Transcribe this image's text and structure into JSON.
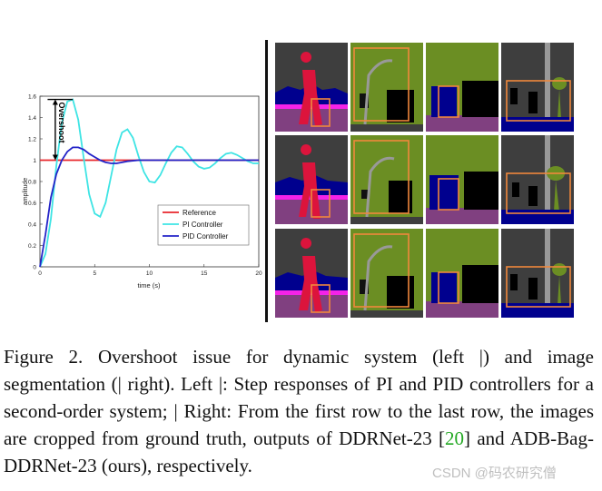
{
  "chart_data": {
    "type": "line",
    "title": "",
    "xlabel": "time (s)",
    "ylabel": "amplitude",
    "xlim": [
      0,
      20
    ],
    "ylim": [
      0,
      1.6
    ],
    "xticks": [
      "0",
      "5",
      "10",
      "15",
      "20"
    ],
    "yticks": [
      "0",
      "0.2",
      "0.4",
      "0.6",
      "0.8",
      "1",
      "1.2",
      "1.4",
      "1.6"
    ],
    "legend_position": "bottom-right",
    "annotation": "Overshoot",
    "series": [
      {
        "name": "Reference",
        "color": "#e8262c",
        "x": [
          0,
          20
        ],
        "y": [
          1,
          1
        ]
      },
      {
        "name": "PI Controller",
        "color": "#3ee4e4",
        "x": [
          0,
          0.5,
          1,
          1.5,
          2,
          2.5,
          3,
          3.5,
          4,
          4.5,
          5,
          5.5,
          6,
          6.5,
          7,
          7.5,
          8,
          8.5,
          9,
          9.5,
          10,
          10.5,
          11,
          11.5,
          12,
          12.5,
          13,
          13.5,
          14,
          14.5,
          15,
          15.5,
          16,
          16.5,
          17,
          17.5,
          18,
          18.5,
          19,
          19.5,
          20
        ],
        "y": [
          0,
          0.12,
          0.45,
          0.95,
          1.35,
          1.55,
          1.57,
          1.38,
          1.02,
          0.68,
          0.5,
          0.47,
          0.6,
          0.85,
          1.1,
          1.26,
          1.29,
          1.21,
          1.04,
          0.89,
          0.8,
          0.79,
          0.86,
          0.97,
          1.07,
          1.13,
          1.12,
          1.06,
          0.99,
          0.94,
          0.92,
          0.93,
          0.97,
          1.02,
          1.06,
          1.07,
          1.05,
          1.02,
          0.99,
          0.97,
          0.97
        ]
      },
      {
        "name": "PID Controller",
        "color": "#2323c8",
        "x": [
          0,
          0.5,
          1,
          1.5,
          2,
          2.5,
          3,
          3.5,
          4,
          4.5,
          5,
          5.5,
          6,
          6.5,
          7,
          7.5,
          8,
          9,
          10,
          12,
          14,
          20
        ],
        "y": [
          0,
          0.3,
          0.65,
          0.87,
          1.0,
          1.08,
          1.12,
          1.12,
          1.1,
          1.06,
          1.03,
          1.0,
          0.98,
          0.97,
          0.97,
          0.98,
          0.99,
          1.0,
          1.0,
          1.0,
          1.0,
          1.0
        ]
      }
    ]
  },
  "colors": {
    "background": "#3e3e3e",
    "vegetation": "#6b8e23",
    "person": "#dc143c",
    "car": "#00008e",
    "road": "#804080",
    "sidewalk": "#f423e8",
    "pole": "#999999",
    "crop_box": "#f0883c"
  },
  "caption": {
    "part1": "Figure 2.  Overshoot issue for dynamic system (left |) and image segmentation (| right).  Left |: Step responses of PI and PID controllers for a second-order system; | Right: From the first row to the last row, the images are cropped from ground truth, outputs of DDRNet-23 [",
    "citation": "20",
    "part2": "] and ADB-Bag-DDRNet-23 (ours), respectively."
  },
  "watermark": "CSDN @码农研究僧"
}
